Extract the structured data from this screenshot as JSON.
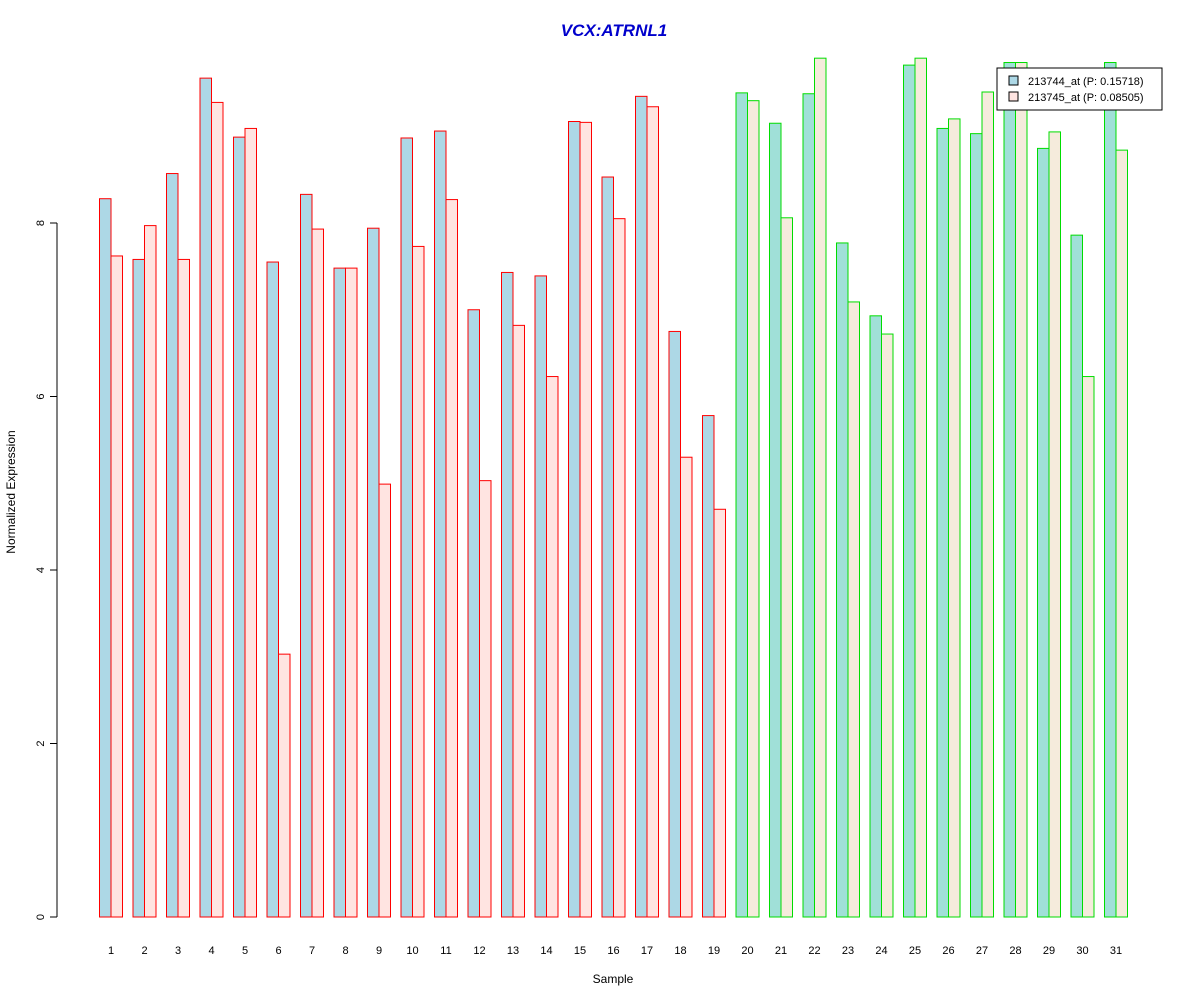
{
  "chart_data": {
    "type": "bar",
    "title": "VCX:ATRNL1",
    "xlabel": "Sample",
    "ylabel": "Normalized Expression",
    "ylim": [
      0,
      9.9
    ],
    "yticks": [
      0,
      2,
      4,
      6,
      8
    ],
    "grid": false,
    "legend_position": "top-right",
    "categories": [
      "1",
      "2",
      "3",
      "4",
      "5",
      "6",
      "7",
      "8",
      "9",
      "10",
      "11",
      "12",
      "13",
      "14",
      "15",
      "16",
      "17",
      "18",
      "19",
      "20",
      "21",
      "22",
      "23",
      "24",
      "25",
      "26",
      "27",
      "28",
      "29",
      "30",
      "31"
    ],
    "group_1_samples": [
      "1",
      "2",
      "3",
      "4",
      "5",
      "6",
      "7",
      "8",
      "9",
      "10",
      "11",
      "12",
      "13",
      "14",
      "15",
      "16",
      "17",
      "18",
      "19"
    ],
    "group_2_samples": [
      "20",
      "21",
      "22",
      "23",
      "24",
      "25",
      "26",
      "27",
      "28",
      "29",
      "30",
      "31"
    ],
    "series": [
      {
        "name": "213744_at (P: 0.15718)",
        "values": [
          8.28,
          7.58,
          8.57,
          9.67,
          8.99,
          7.55,
          8.33,
          7.48,
          7.94,
          8.98,
          9.06,
          7.0,
          7.43,
          7.39,
          9.17,
          8.53,
          9.46,
          6.75,
          5.78,
          9.5,
          9.15,
          9.49,
          7.77,
          6.93,
          9.82,
          9.09,
          9.03,
          9.85,
          8.86,
          7.86,
          9.85
        ]
      },
      {
        "name": "213745_at (P: 0.08505)",
        "values": [
          7.62,
          7.97,
          7.58,
          9.39,
          9.09,
          3.03,
          7.93,
          7.48,
          4.99,
          7.73,
          8.27,
          5.03,
          6.82,
          6.23,
          9.16,
          8.05,
          9.34,
          5.3,
          4.7,
          9.41,
          8.06,
          9.9,
          7.09,
          6.72,
          9.9,
          9.2,
          9.51,
          9.85,
          9.05,
          6.23,
          8.84
        ]
      }
    ],
    "colors": {
      "title": "#0000cc",
      "series_1_fill_group_1": "#add8e6",
      "series_2_fill_group_1": "#ffe4e1",
      "series_1_fill_group_2": "#a0e0d8",
      "series_2_fill_group_2": "#f5ebdc",
      "border_group_1": "#ff0000",
      "border_group_2": "#00dd00",
      "axis": "#000000",
      "legend_swatch_1": "#add8e6",
      "legend_swatch_2": "#ffe4e1",
      "legend_swatch_border": "#000000"
    }
  }
}
